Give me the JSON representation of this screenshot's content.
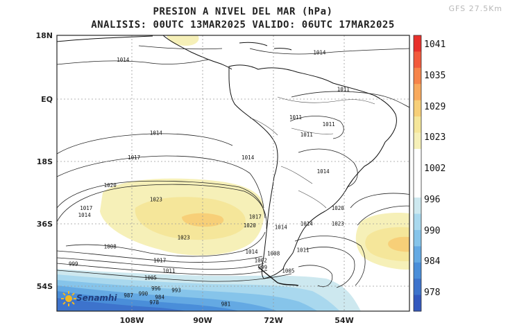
{
  "title": "PRESION A NIVEL DEL MAR (hPa)",
  "subtitle": "ANALISIS: 00UTC 13MAR2025 VALIDO: 06UTC 17MAR2025",
  "model_label": "GFS 27.5Km",
  "brand": "Senamhi",
  "axes": {
    "lat_ticks": [
      "18N",
      "EQ",
      "18S",
      "36S",
      "54S"
    ],
    "lon_ticks": [
      "108W",
      "90W",
      "72W",
      "54W"
    ]
  },
  "colorbar": {
    "labels": [
      "1041",
      "1035",
      "1029",
      "1023",
      "1002",
      "996",
      "990",
      "984",
      "978"
    ],
    "colors": [
      "#e8302b",
      "#f25a3c",
      "#f6844a",
      "#f8a95c",
      "#f7cf78",
      "#f5e69a",
      "#f6f0b8",
      "#ffffff",
      "#ffffff",
      "#ffffff",
      "#cde8ef",
      "#a9d8ee",
      "#86c4ea",
      "#64a9e3",
      "#4a8ed9",
      "#3d73cc",
      "#3358be"
    ]
  },
  "contour_labels": [
    {
      "text": "1014",
      "lon": -108.0,
      "lat": 10.5
    },
    {
      "text": "1014",
      "lon": -54.5,
      "lat": 12.5
    },
    {
      "text": "1011",
      "lon": -48.0,
      "lat": 2.0
    },
    {
      "text": "1011",
      "lon": -61.0,
      "lat": -6.0
    },
    {
      "text": "1011",
      "lon": -52.0,
      "lat": -8.0
    },
    {
      "text": "1011",
      "lon": -58.0,
      "lat": -11.0
    },
    {
      "text": "1014",
      "lon": -99.0,
      "lat": -10.5
    },
    {
      "text": "1017",
      "lon": -105.0,
      "lat": -17.5
    },
    {
      "text": "1014",
      "lon": -74.0,
      "lat": -17.5
    },
    {
      "text": "1014",
      "lon": -53.5,
      "lat": -21.5
    },
    {
      "text": "1020",
      "lon": -111.5,
      "lat": -25.5
    },
    {
      "text": "1023",
      "lon": -99.0,
      "lat": -29.5
    },
    {
      "text": "1017",
      "lon": -118.0,
      "lat": -32.0
    },
    {
      "text": "1014",
      "lon": -118.5,
      "lat": -34.0
    },
    {
      "text": "1020",
      "lon": -49.5,
      "lat": -32.0
    },
    {
      "text": "1023",
      "lon": -49.5,
      "lat": -36.5
    },
    {
      "text": "1017",
      "lon": -72.0,
      "lat": -34.5
    },
    {
      "text": "1020",
      "lon": -73.5,
      "lat": -37.0
    },
    {
      "text": "1014",
      "lon": -65.0,
      "lat": -37.5
    },
    {
      "text": "1014",
      "lon": -58.0,
      "lat": -36.5
    },
    {
      "text": "1023",
      "lon": -91.5,
      "lat": -40.5
    },
    {
      "text": "1008",
      "lon": -111.5,
      "lat": -43.0
    },
    {
      "text": "1011",
      "lon": -59.0,
      "lat": -44.0
    },
    {
      "text": "1008",
      "lon": -67.0,
      "lat": -45.0
    },
    {
      "text": "1014",
      "lon": -73.0,
      "lat": -44.5
    },
    {
      "text": "1017",
      "lon": -98.0,
      "lat": -47.0
    },
    {
      "text": "1002",
      "lon": -70.5,
      "lat": -47.0
    },
    {
      "text": "999",
      "lon": -121.5,
      "lat": -48.0
    },
    {
      "text": "999",
      "lon": -70.0,
      "lat": -49.0
    },
    {
      "text": "1011",
      "lon": -95.5,
      "lat": -50.0
    },
    {
      "text": "1005",
      "lon": -63.0,
      "lat": -50.0
    },
    {
      "text": "1005",
      "lon": -100.5,
      "lat": -52.0
    },
    {
      "text": "996",
      "lon": -99.0,
      "lat": -55.0
    },
    {
      "text": "993",
      "lon": -93.5,
      "lat": -55.5
    },
    {
      "text": "990",
      "lon": -102.5,
      "lat": -56.5
    },
    {
      "text": "987",
      "lon": -106.5,
      "lat": -57.0
    },
    {
      "text": "984",
      "lon": -98.0,
      "lat": -57.5
    },
    {
      "text": "978",
      "lon": -99.5,
      "lat": -59.0
    },
    {
      "text": "981",
      "lon": -80.0,
      "lat": -59.5
    }
  ]
}
